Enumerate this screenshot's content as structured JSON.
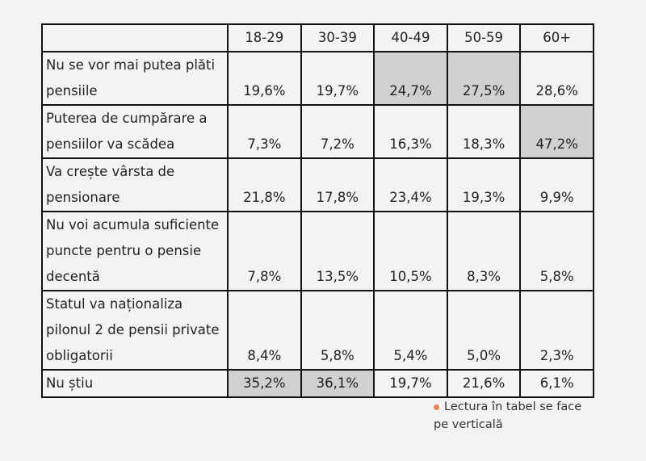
{
  "chart_data": {
    "type": "table",
    "columns": [
      "",
      "18-29",
      "30-39",
      "40-49",
      "50-59",
      "60+"
    ],
    "rows": [
      {
        "label": "Nu se vor mai putea plăti pensiile",
        "values": [
          "19,6%",
          "19,7%",
          "24,7%",
          "27,5%",
          "28,6%"
        ],
        "highlight": [
          false,
          false,
          true,
          true,
          false
        ]
      },
      {
        "label": "Puterea de cumpărare a pensiilor va scădea",
        "values": [
          "7,3%",
          "7,2%",
          "16,3%",
          "18,3%",
          "47,2%"
        ],
        "highlight": [
          false,
          false,
          false,
          false,
          true
        ]
      },
      {
        "label": "Va crește vârsta de pensionare",
        "values": [
          "21,8%",
          "17,8%",
          "23,4%",
          "19,3%",
          "9,9%"
        ],
        "highlight": [
          false,
          false,
          false,
          false,
          false
        ]
      },
      {
        "label": "Nu voi acumula suficiente puncte pentru o pensie decentă",
        "values": [
          "7,8%",
          "13,5%",
          "10,5%",
          "8,3%",
          "5,8%"
        ],
        "highlight": [
          false,
          false,
          false,
          false,
          false
        ]
      },
      {
        "label": "Statul va naționaliza pilonul 2 de pensii private obligatorii",
        "values": [
          "8,4%",
          "5,8%",
          "5,4%",
          "5,0%",
          "2,3%"
        ],
        "highlight": [
          false,
          false,
          false,
          false,
          false
        ]
      },
      {
        "label": "Nu știu",
        "values": [
          "35,2%",
          "36,1%",
          "19,7%",
          "21,6%",
          "6,1%"
        ],
        "highlight": [
          true,
          true,
          false,
          false,
          false
        ]
      }
    ],
    "highlight_color": "#d0d0d0"
  },
  "note": {
    "text": "Lectura în tabel se face pe verticală",
    "bullet_color": "#f08050"
  }
}
